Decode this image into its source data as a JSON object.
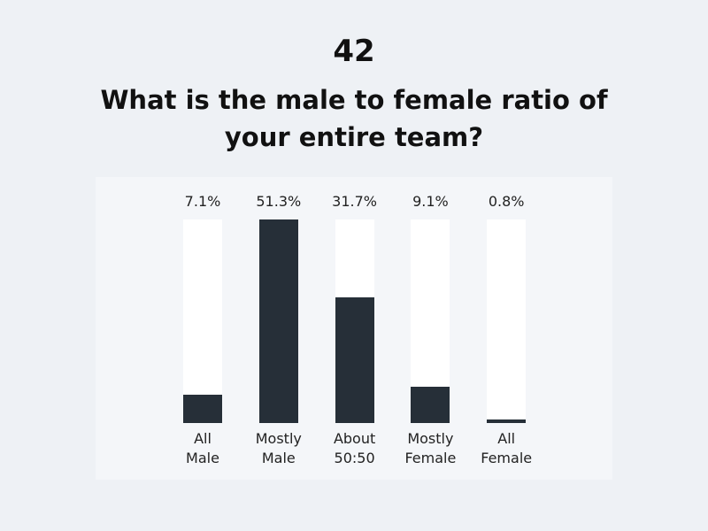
{
  "chart_data": {
    "type": "bar",
    "subtitle": "42",
    "title": "What is the male to female ratio of your entire team?",
    "categories": [
      "All Male",
      "Mostly Male",
      "About 50:50",
      "Mostly Female",
      "All Female"
    ],
    "values": [
      7.1,
      51.3,
      31.7,
      9.1,
      0.8
    ],
    "value_labels": [
      "7.1%",
      "51.3%",
      "31.7%",
      "9.1%",
      "0.8%"
    ],
    "color": "#262f38",
    "track_color": "#ffffff",
    "ylim": [
      0,
      51.3
    ]
  }
}
